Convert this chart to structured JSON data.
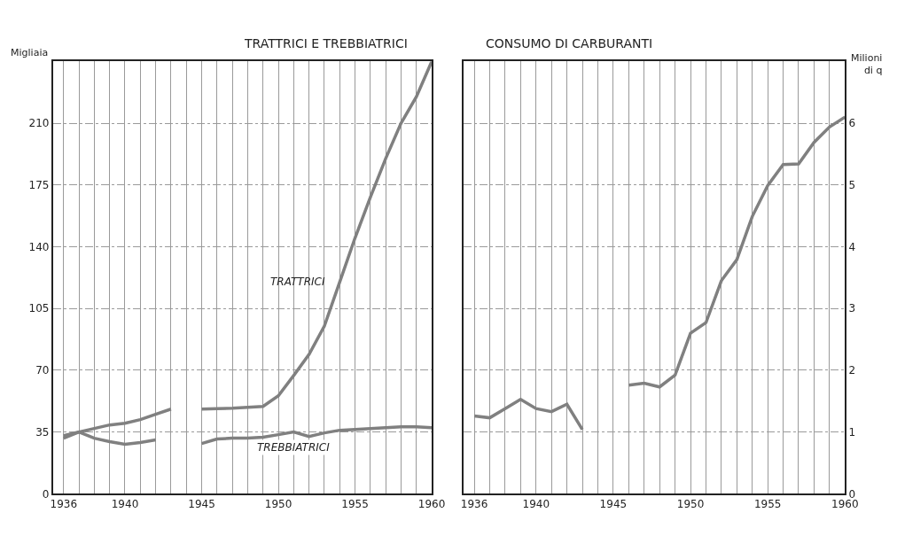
{
  "chart_data": [
    {
      "type": "line",
      "title": "TRATTRICI E TREBBIATRICI",
      "ylabel": "Migliaia",
      "x": [
        1936,
        1937,
        1938,
        1939,
        1940,
        1941,
        1942,
        1943,
        1944,
        1945,
        1946,
        1947,
        1948,
        1949,
        1950,
        1951,
        1952,
        1953,
        1954,
        1955,
        1956,
        1957,
        1958,
        1959,
        1960
      ],
      "series": [
        {
          "name": "TRATTRICI",
          "color": "#808080",
          "values": [
            31.5,
            35,
            37,
            39,
            40,
            42,
            45,
            48,
            null,
            48,
            48.2,
            48.5,
            49,
            49.5,
            55.5,
            67,
            79,
            95,
            120,
            145,
            168,
            190,
            210,
            225,
            245
          ]
        },
        {
          "name": "TREBBIATRICI",
          "color": "#808080",
          "values": [
            33,
            35,
            31.5,
            29.5,
            28,
            29,
            30.5,
            null,
            null,
            28.5,
            31,
            31.5,
            31.5,
            32,
            33.5,
            35,
            32.5,
            34.5,
            36,
            36.5,
            37,
            37.5,
            38,
            38,
            37.5
          ]
        }
      ],
      "xlim": [
        1935.3,
        1960
      ],
      "ylim": [
        0,
        245
      ],
      "xticks": [
        1936,
        {
          "value": 1937,
          "label": null
        },
        {
          "value": 1938,
          "label": null
        },
        {
          "value": 1939,
          "label": null
        },
        1940,
        {
          "value": 1941,
          "label": null
        },
        {
          "value": 1942,
          "label": null
        },
        {
          "value": 1943,
          "label": null
        },
        {
          "value": 1944,
          "label": null
        },
        1945,
        {
          "value": 1946,
          "label": null
        },
        {
          "value": 1947,
          "label": null
        },
        {
          "value": 1948,
          "label": null
        },
        {
          "value": 1949,
          "label": null
        },
        1950,
        {
          "value": 1951,
          "label": null
        },
        {
          "value": 1952,
          "label": null
        },
        {
          "value": 1953,
          "label": null
        },
        {
          "value": 1954,
          "label": null
        },
        1955,
        {
          "value": 1956,
          "label": null
        },
        {
          "value": 1957,
          "label": null
        },
        {
          "value": 1958,
          "label": null
        },
        {
          "value": 1959,
          "label": null
        },
        1960
      ],
      "yticks": [
        0,
        35,
        70,
        105,
        140,
        175,
        210
      ],
      "grid": true,
      "legend": false,
      "marker": "none",
      "line_style": "solid"
    },
    {
      "type": "line",
      "title": "CONSUMO DI CARBURANTI",
      "y2label": "Milioni di q",
      "x": [
        1936,
        1937,
        1938,
        1939,
        1940,
        1941,
        1942,
        1943,
        1944,
        1945,
        1946,
        1947,
        1948,
        1949,
        1950,
        1951,
        1952,
        1953,
        1954,
        1955,
        1956,
        1957,
        1958,
        1959,
        1960
      ],
      "series": [
        {
          "color": "#808080",
          "axis": "y2",
          "values": [
            1.26,
            1.23,
            1.38,
            1.53,
            1.38,
            1.33,
            1.45,
            1.04,
            null,
            null,
            1.76,
            1.79,
            1.73,
            1.92,
            2.6,
            2.77,
            3.45,
            3.79,
            4.49,
            4.99,
            5.33,
            5.34,
            5.69,
            5.94,
            6.1
          ]
        }
      ],
      "xlim": [
        1935.3,
        1960
      ],
      "y2lim": [
        0,
        7
      ],
      "xticks": [
        1936,
        {
          "value": 1937,
          "label": null
        },
        {
          "value": 1938,
          "label": null
        },
        {
          "value": 1939,
          "label": null
        },
        1940,
        {
          "value": 1941,
          "label": null
        },
        {
          "value": 1942,
          "label": null
        },
        {
          "value": 1943,
          "label": null
        },
        {
          "value": 1944,
          "label": null
        },
        1945,
        {
          "value": 1946,
          "label": null
        },
        {
          "value": 1947,
          "label": null
        },
        {
          "value": 1948,
          "label": null
        },
        {
          "value": 1949,
          "label": null
        },
        1950,
        {
          "value": 1951,
          "label": null
        },
        {
          "value": 1952,
          "label": null
        },
        {
          "value": 1953,
          "label": null
        },
        {
          "value": 1954,
          "label": null
        },
        1955,
        {
          "value": 1956,
          "label": null
        },
        {
          "value": 1957,
          "label": null
        },
        {
          "value": 1958,
          "label": null
        },
        {
          "value": 1959,
          "label": null
        },
        1960
      ],
      "y2ticks": [
        0,
        1,
        2,
        3,
        4,
        5,
        6
      ],
      "grid": true,
      "legend": false,
      "marker": "none",
      "line_style": "solid"
    }
  ]
}
